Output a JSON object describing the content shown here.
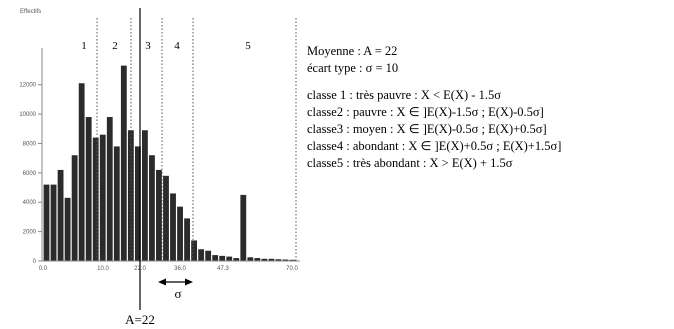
{
  "chart_data": {
    "type": "bar",
    "ylabel": "Effectifs",
    "y_ticks": [
      0,
      2000,
      4000,
      6000,
      8000,
      10000,
      12000
    ],
    "y_tick_labels": [
      "0",
      "2000",
      "4000",
      "6000",
      "8000",
      "10000",
      "12000"
    ],
    "ylim": [
      0,
      14500
    ],
    "x_tick_labels": [
      "0.0",
      "10.0",
      "22.0",
      "36.0",
      "47.3",
      "70.0"
    ],
    "values": [
      5200,
      5200,
      6200,
      4300,
      7200,
      12100,
      9800,
      8400,
      8600,
      9800,
      7800,
      13300,
      8900,
      7800,
      8900,
      7200,
      6200,
      5800,
      4600,
      3700,
      2900,
      1400,
      800,
      700,
      400,
      350,
      300,
      200,
      4500,
      250,
      200,
      150,
      150,
      120,
      100,
      80
    ],
    "class_labels": [
      "1",
      "2",
      "3",
      "4",
      "5"
    ],
    "mean_label": "A=22",
    "sigma_label": "σ"
  },
  "info": {
    "mean": "Moyenne : A = 22",
    "std": "écart type : σ = 10",
    "classes": [
      "classe 1 : très pauvre : X < E(X) - 1.5σ",
      "classe2 : pauvre : X ∈ ]E(X)-1.5σ ; E(X)-0.5σ]",
      "classe3 : moyen : X ∈ ]E(X)-0.5σ ; E(X)+0.5σ]",
      "classe4 : abondant : X ∈ ]E(X)+0.5σ ; E(X)+1.5σ]",
      "classe5 : très abondant : X > E(X) + 1.5σ"
    ]
  }
}
